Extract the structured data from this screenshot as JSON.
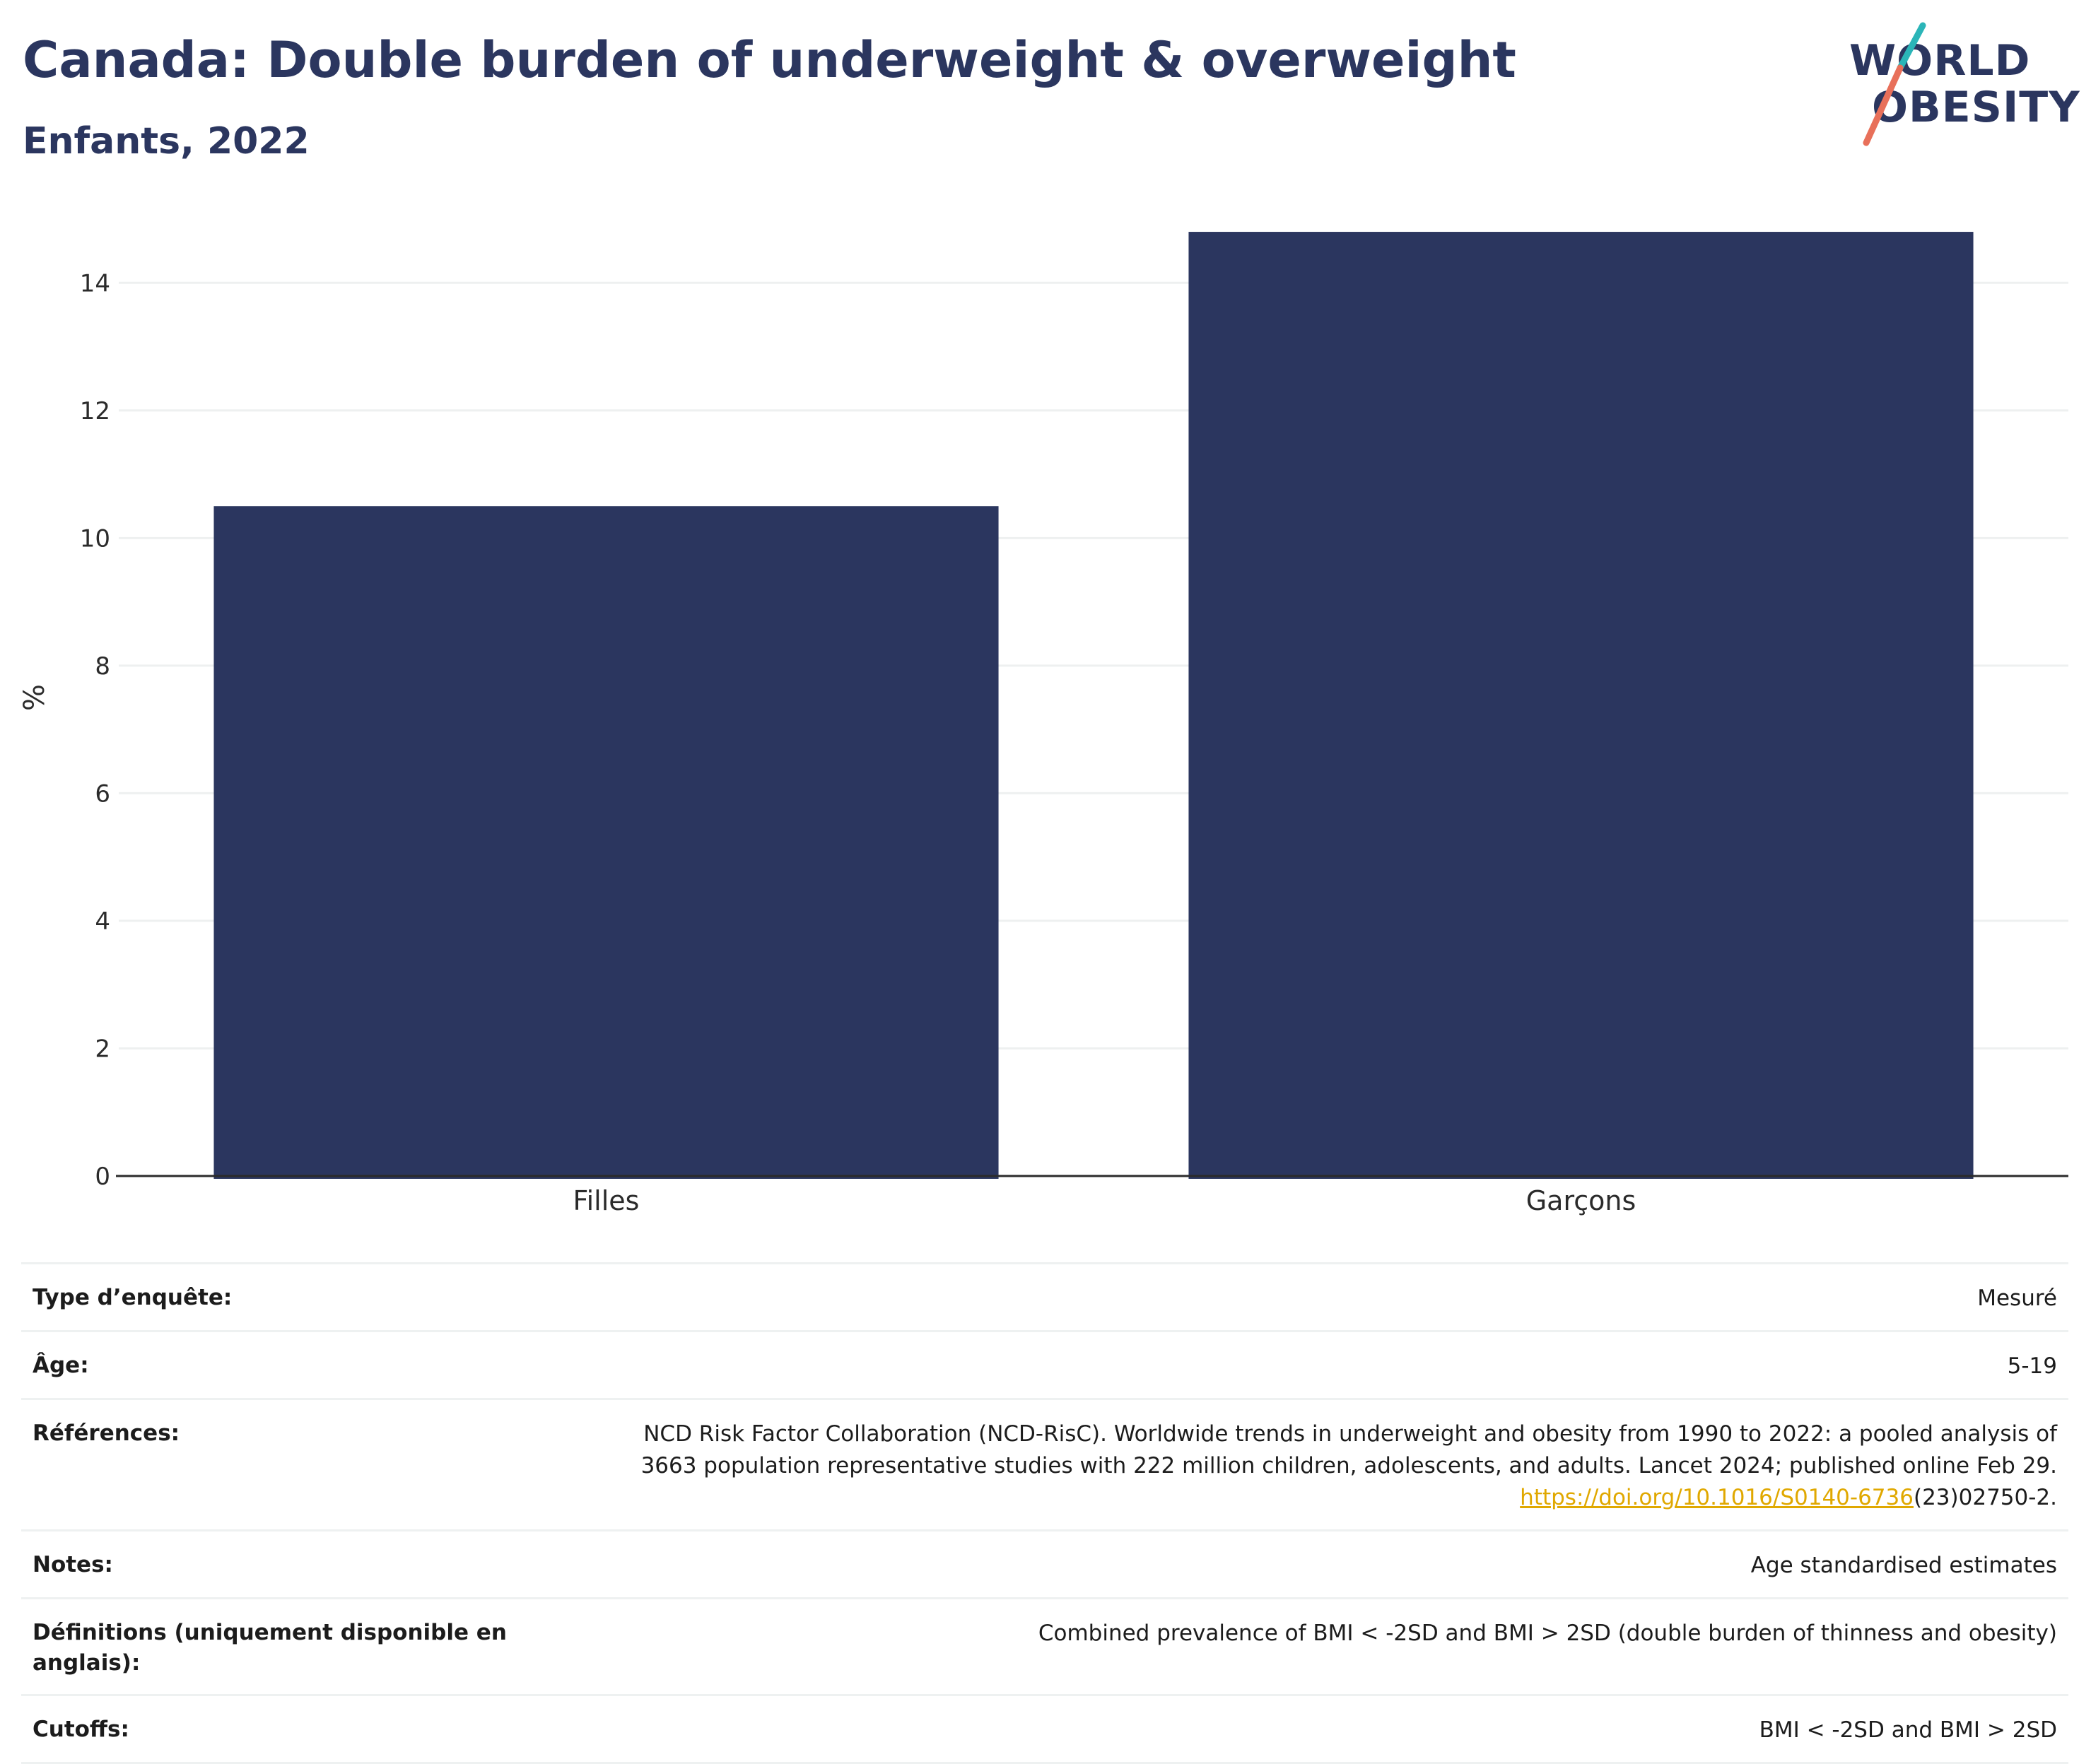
{
  "title": "Canada: Double burden of underweight & overweight",
  "subtitle": "Enfants, 2022",
  "logo": {
    "line1": "WORLD",
    "line2": "OBESITY",
    "accent_colors": [
      "#2bb5b8",
      "#e8705a"
    ]
  },
  "colors": {
    "bar": "#2b365f",
    "grid": "#eef0f0",
    "axis": "#2b2b2b"
  },
  "chart_data": {
    "type": "bar",
    "categories": [
      "Filles",
      "Garçons"
    ],
    "values": [
      10.5,
      14.8
    ],
    "xlabel": "",
    "ylabel": "%",
    "ylim": [
      0,
      15
    ],
    "yticks": [
      0,
      2,
      4,
      6,
      8,
      10,
      12,
      14
    ],
    "grid": true
  },
  "info": {
    "survey_key": "Type d’enquête:",
    "survey_val": "Mesuré",
    "age_key": "Âge:",
    "age_val": "5-19",
    "refs_key": "Références:",
    "refs_line1": "NCD Risk Factor Collaboration (NCD-RisC). Worldwide trends in underweight and obesity from 1990 to 2022: a pooled analysis of",
    "refs_line2": "3663 population representative studies with 222 million children, adolescents, and adults. Lancet 2024; published online Feb 29.",
    "refs_link": "https://doi.org/10.1016/S0140-6736",
    "refs_tail": "(23)02750-2.",
    "notes_key": "Notes:",
    "notes_val": "Age standardised estimates",
    "defs_key": "Définitions (uniquement disponible en anglais):",
    "defs_val": "Combined prevalence of BMI < -2SD and BMI > 2SD (double burden of thinness and obesity)",
    "cutoffs_key": "Cutoffs:",
    "cutoffs_val": "BMI < -2SD and BMI > 2SD"
  }
}
